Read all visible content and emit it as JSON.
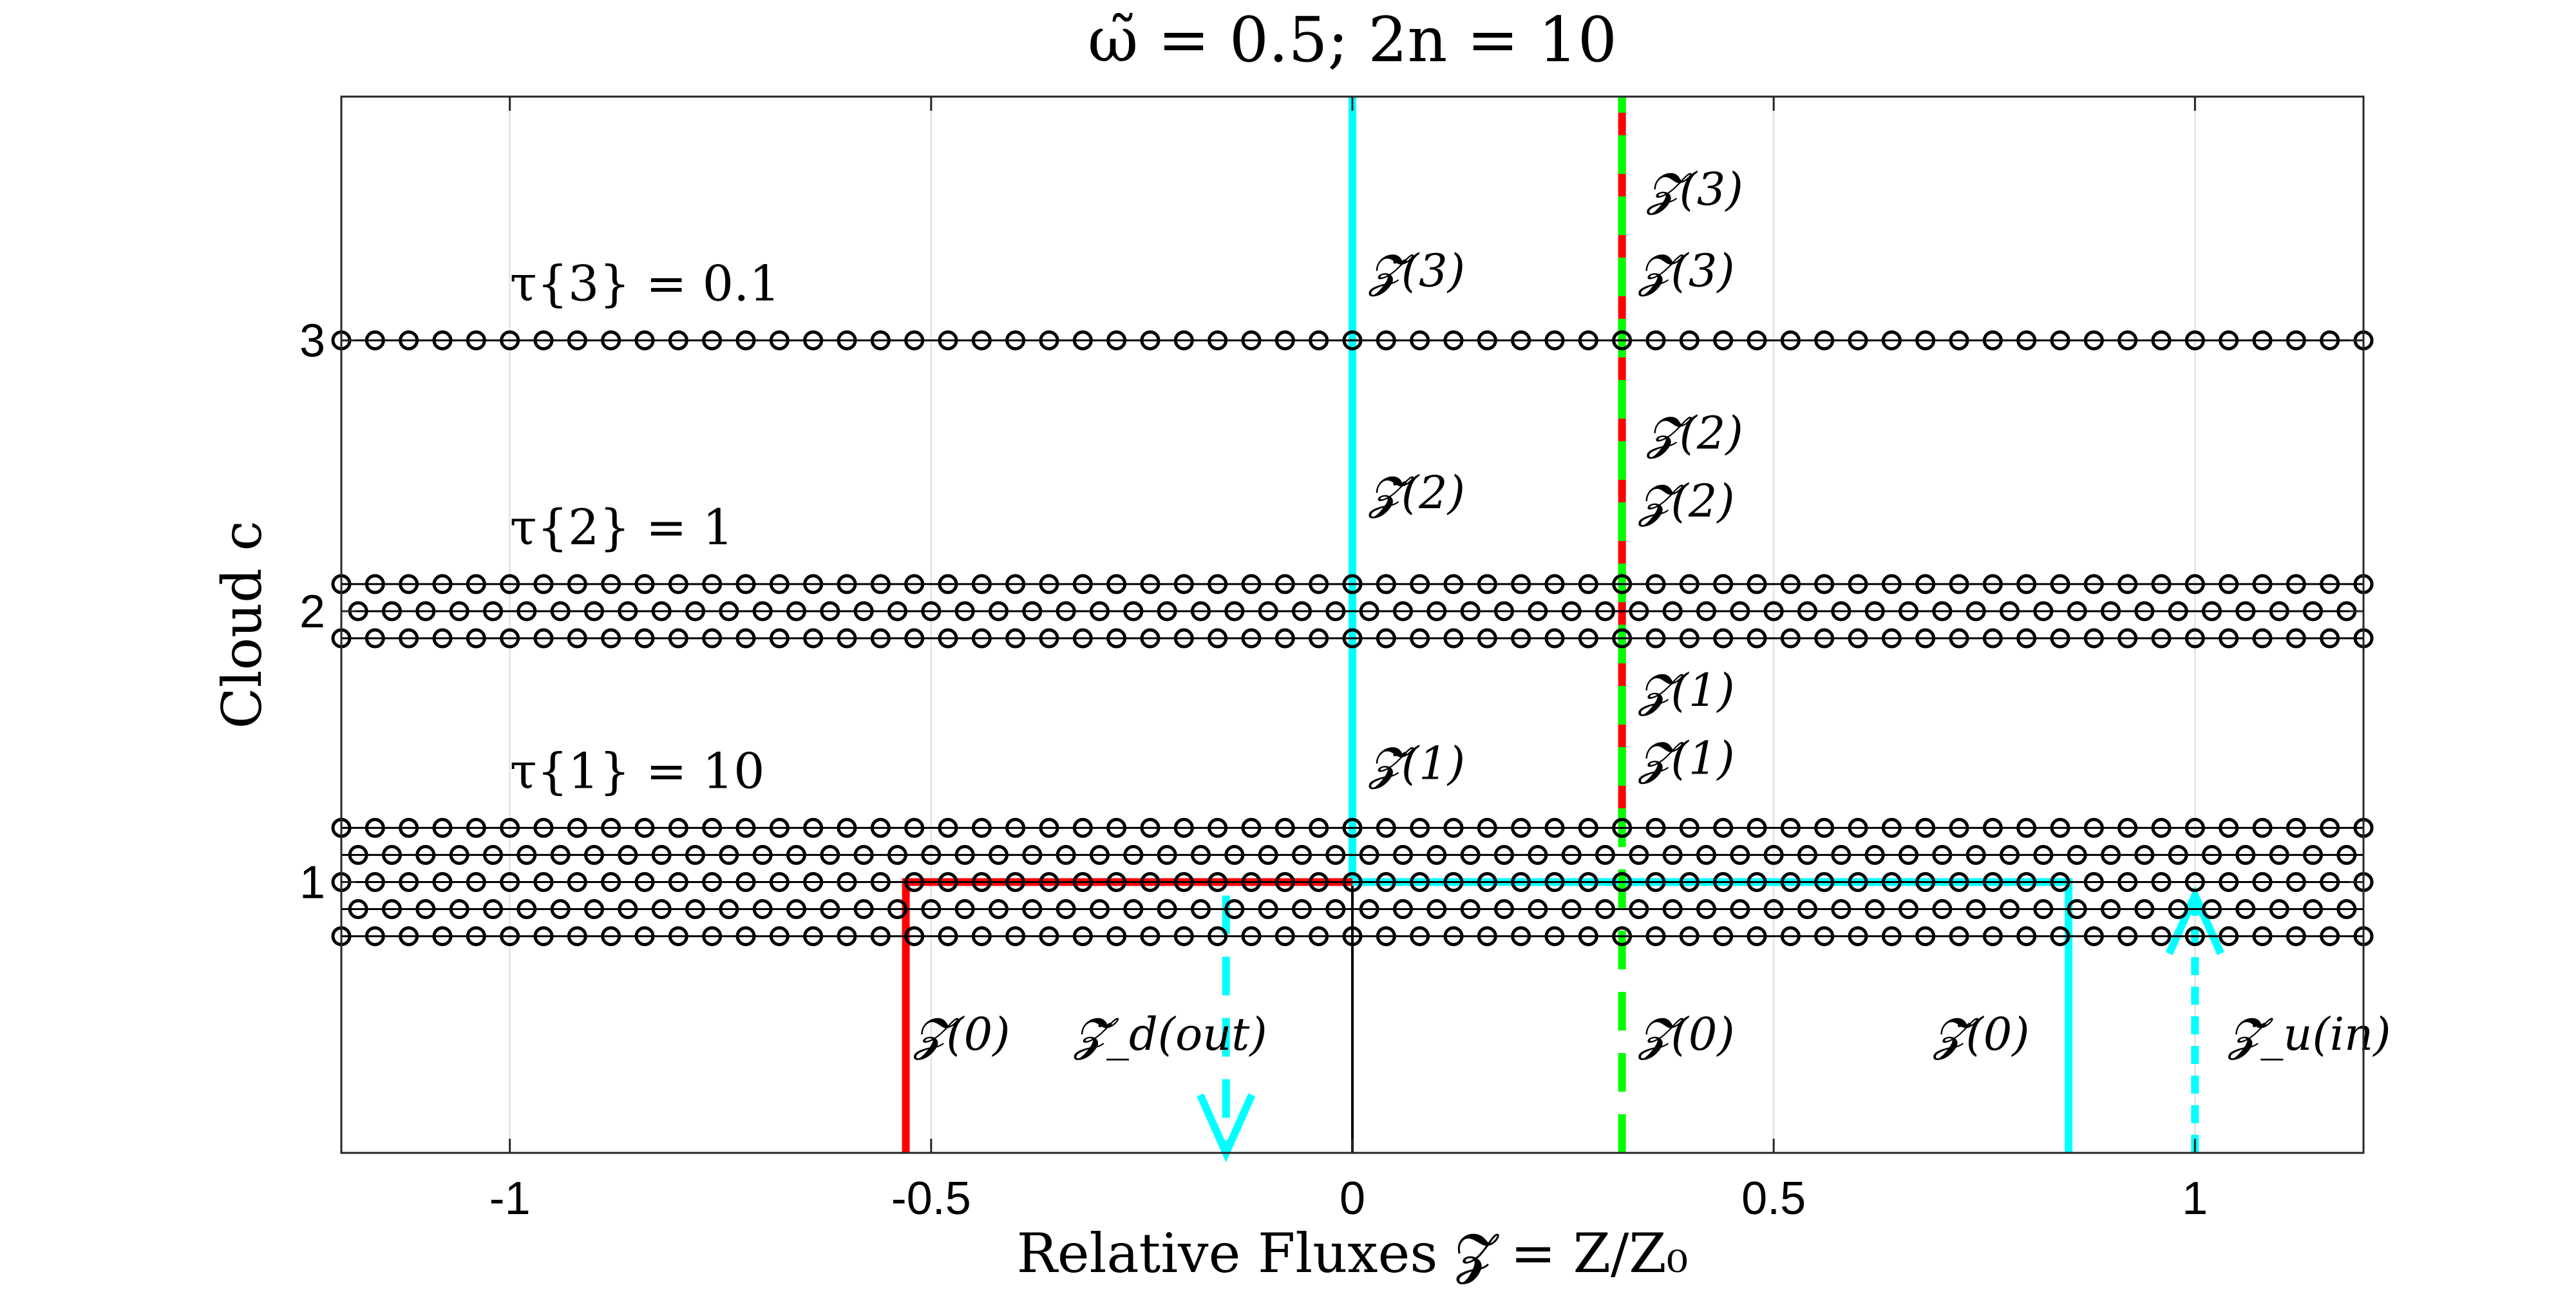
{
  "chart_data": {
    "type": "scatter",
    "title": "ω̃ = 0.5;   2n = 10",
    "xlabel": "Relative Fluxes 𝓩 = Z/Z₀",
    "ylabel": "Cloud c",
    "xlim": [
      -1.2,
      1.2
    ],
    "ylim": [
      0,
      3.9
    ],
    "xticks": [
      -1,
      -0.5,
      0,
      0.5,
      1
    ],
    "xtick_labels": [
      "-1",
      "-0.5",
      "0",
      "0.5",
      "1"
    ],
    "yticks": [
      1,
      2,
      3
    ],
    "ytick_labels": [
      "1",
      "2",
      "3"
    ],
    "grid": "x",
    "clouds": [
      {
        "c": 1,
        "tau_label": "τ{1} = 10",
        "rows": [
          1.2,
          1.1,
          1.0,
          0.9,
          0.8
        ]
      },
      {
        "c": 2,
        "tau_label": "τ{2} = 1",
        "rows": [
          2.1,
          2.0,
          1.9
        ]
      },
      {
        "c": 3,
        "tau_label": "τ{3} = 0.1",
        "rows": [
          3.0
        ]
      }
    ],
    "series": [
      {
        "color": "#000000",
        "style": "solid",
        "points": [
          [
            0,
            0
          ],
          [
            0,
            3.9
          ]
        ]
      },
      {
        "color": "#00ffff",
        "style": "solid",
        "points": [
          [
            0,
            3.9
          ],
          [
            0,
            1.0
          ],
          [
            0.85,
            1.0
          ],
          [
            0.85,
            0
          ]
        ]
      },
      {
        "color": "#ff0000",
        "style": "solid",
        "points": [
          [
            -0.53,
            0
          ],
          [
            -0.53,
            1.0
          ],
          [
            0,
            1.0
          ]
        ]
      },
      {
        "color": "#ff0000",
        "style": "solid",
        "points": [
          [
            0.32,
            1.2
          ],
          [
            0.32,
            3.9
          ]
        ]
      },
      {
        "color": "#00ff00",
        "style": "dashed",
        "points": [
          [
            0.32,
            0
          ],
          [
            0.32,
            3.9
          ]
        ]
      },
      {
        "color": "#00ffff",
        "style": "dashed-arrow-down",
        "points": [
          [
            -0.15,
            0.95
          ],
          [
            -0.15,
            0
          ]
        ]
      },
      {
        "color": "#00ffff",
        "style": "dotted-arrow-up",
        "points": [
          [
            1.0,
            0
          ],
          [
            1.0,
            0.95
          ]
        ]
      }
    ],
    "annotations": [
      {
        "text": "𝓩̇(0)",
        "x": -0.52,
        "y": 0.38
      },
      {
        "text": "𝓩̈_d(out)",
        "x": -0.33,
        "y": 0.38
      },
      {
        "text": "𝓩(0)",
        "x": 0.34,
        "y": 0.38
      },
      {
        "text": "𝓩̈(0)",
        "x": 0.69,
        "y": 0.38
      },
      {
        "text": "𝓩̈_u(in)",
        "x": 1.04,
        "y": 0.38
      },
      {
        "text": "𝓩̈(1)",
        "x": 0.02,
        "y": 1.38
      },
      {
        "text": "𝓩̈(2)",
        "x": 0.02,
        "y": 2.38
      },
      {
        "text": "𝓩̈(3)",
        "x": 0.02,
        "y": 3.2
      },
      {
        "text": "𝓩(1)",
        "x": 0.34,
        "y": 1.65
      },
      {
        "text": "𝓩̇(1)",
        "x": 0.34,
        "y": 1.4
      },
      {
        "text": "𝓩(2)",
        "x": 0.35,
        "y": 2.6
      },
      {
        "text": "𝓩̇(2)",
        "x": 0.34,
        "y": 2.35
      },
      {
        "text": "𝓩(3)",
        "x": 0.35,
        "y": 3.5
      },
      {
        "text": "𝓩̇(3)",
        "x": 0.34,
        "y": 3.2
      }
    ]
  }
}
